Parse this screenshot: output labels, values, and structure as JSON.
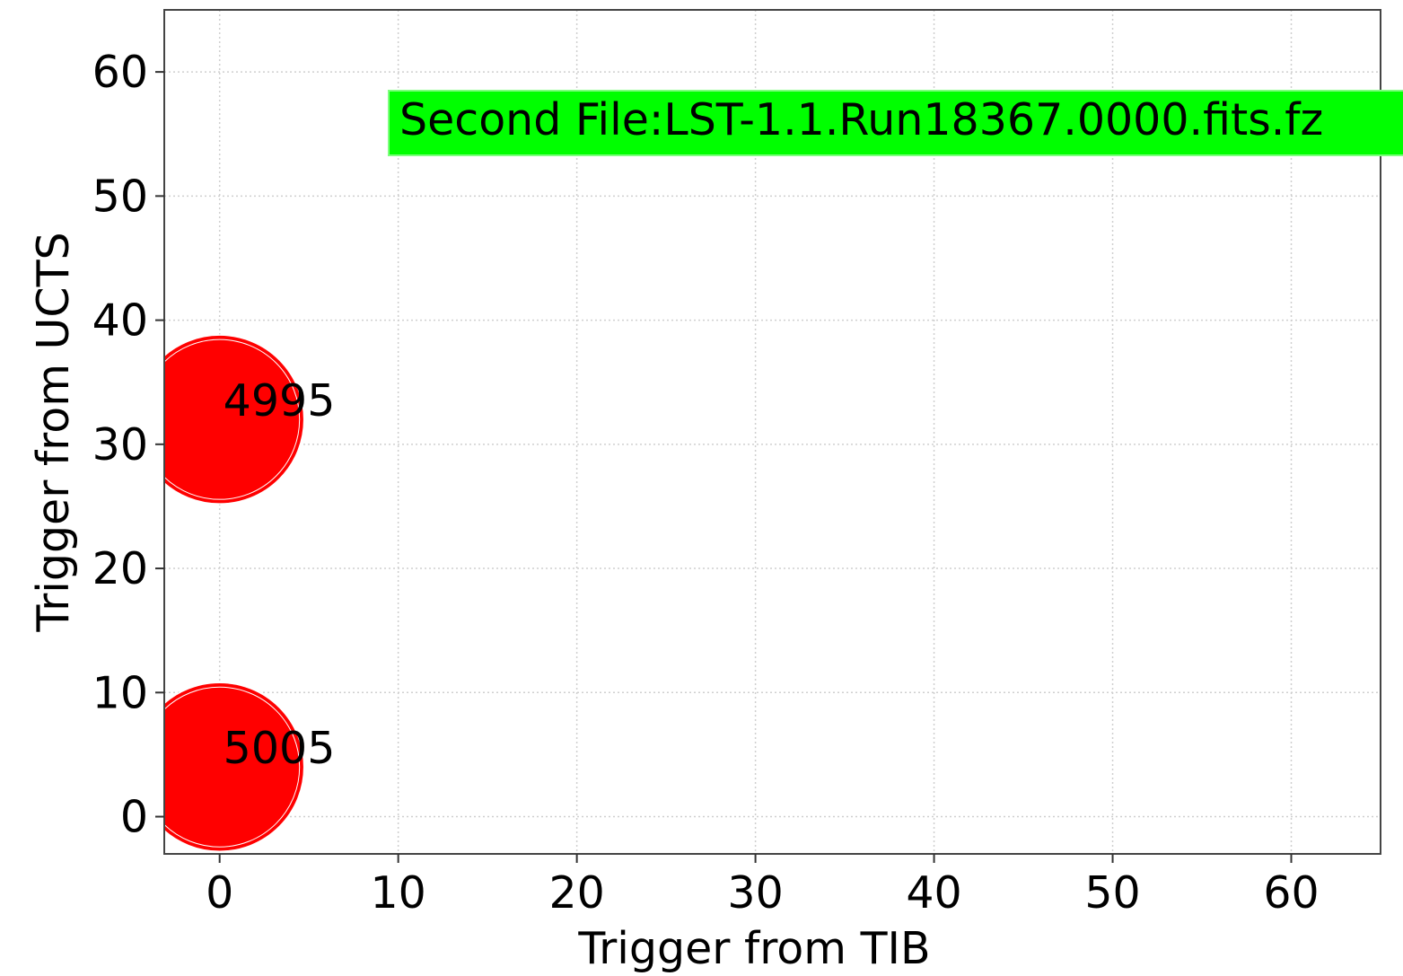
{
  "chart_data": {
    "type": "scatter",
    "title": "",
    "xlabel": "Trigger from TIB",
    "ylabel": "Trigger from UCTS",
    "xlim": [
      -3.1,
      65
    ],
    "ylim": [
      -3.0,
      65
    ],
    "xticks": [
      0,
      10,
      20,
      30,
      40,
      50,
      60
    ],
    "yticks": [
      0,
      10,
      20,
      30,
      40,
      50,
      60
    ],
    "grid": true,
    "points": [
      {
        "x": 0,
        "y": 32,
        "label": "4995",
        "color": "#ff0000"
      },
      {
        "x": 0,
        "y": 4,
        "label": "5005",
        "color": "#ff0000"
      }
    ],
    "annotation": {
      "text": "Second File:LST-1.1.Run18367.0000.fits.fz",
      "background": "#00ff00"
    }
  }
}
